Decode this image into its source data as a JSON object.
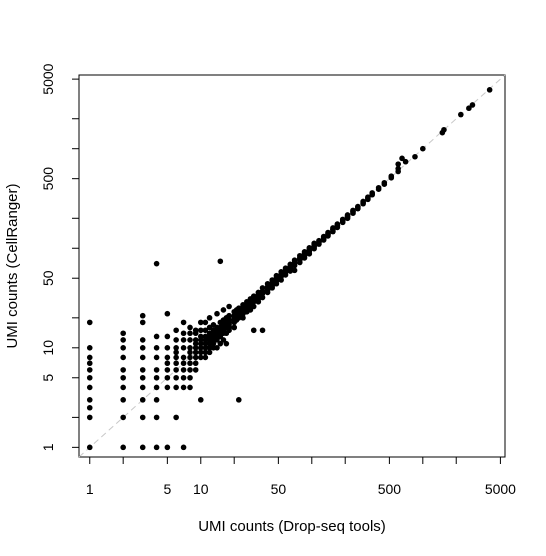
{
  "chart_data": {
    "type": "scatter",
    "title": "",
    "xlabel": "UMI counts (Drop-seq tools)",
    "ylabel": "UMI counts (CellRanger)",
    "xscale": "log",
    "yscale": "log",
    "xlim": [
      0.8,
      5500
    ],
    "ylim": [
      0.8,
      5500
    ],
    "x_ticks": [
      1,
      2,
      5,
      10,
      20,
      50,
      100,
      200,
      500,
      1000,
      2000,
      5000
    ],
    "x_tick_labels": [
      "1",
      "",
      "5",
      "10",
      "",
      "50",
      "",
      "",
      "500",
      "",
      "",
      "5000"
    ],
    "y_ticks": [
      1,
      2,
      5,
      10,
      20,
      50,
      100,
      200,
      500,
      1000,
      2000,
      5000
    ],
    "y_tick_labels": [
      "1",
      "",
      "5",
      "10",
      "",
      "50",
      "",
      "",
      "500",
      "",
      "",
      "5000"
    ],
    "grid": false,
    "legend": "none",
    "reference_line": {
      "slope": 1,
      "intercept": 0,
      "style": "dashed",
      "color": "#c8c8c8"
    },
    "point_color": "#000000",
    "series": [
      {
        "points": [
          [
            1,
            1
          ],
          [
            1,
            2
          ],
          [
            1,
            2.5
          ],
          [
            1,
            3
          ],
          [
            1,
            4
          ],
          [
            1,
            5
          ],
          [
            1,
            6
          ],
          [
            1,
            7
          ],
          [
            1,
            8
          ],
          [
            1,
            10
          ],
          [
            1,
            18
          ],
          [
            2,
            1
          ],
          [
            2,
            2
          ],
          [
            2,
            3
          ],
          [
            2,
            4
          ],
          [
            2,
            5
          ],
          [
            2,
            6
          ],
          [
            2,
            8
          ],
          [
            2,
            10
          ],
          [
            2,
            12
          ],
          [
            2,
            14
          ],
          [
            3,
            1
          ],
          [
            3,
            2
          ],
          [
            3,
            3
          ],
          [
            3,
            4
          ],
          [
            3,
            5
          ],
          [
            3,
            6
          ],
          [
            3,
            8
          ],
          [
            3,
            10
          ],
          [
            3,
            12
          ],
          [
            3,
            18
          ],
          [
            3,
            21
          ],
          [
            4,
            1
          ],
          [
            4,
            2
          ],
          [
            4,
            3
          ],
          [
            4,
            4
          ],
          [
            4,
            5
          ],
          [
            4,
            6
          ],
          [
            4,
            8
          ],
          [
            4,
            10
          ],
          [
            4,
            13
          ],
          [
            4,
            70
          ],
          [
            5,
            1
          ],
          [
            5,
            4
          ],
          [
            5,
            5
          ],
          [
            5,
            6
          ],
          [
            5,
            7
          ],
          [
            5,
            8
          ],
          [
            5,
            10
          ],
          [
            5,
            13
          ],
          [
            5,
            22
          ],
          [
            6,
            2
          ],
          [
            6,
            4
          ],
          [
            6,
            5
          ],
          [
            6,
            6
          ],
          [
            6,
            7
          ],
          [
            6,
            8
          ],
          [
            6,
            9
          ],
          [
            6,
            10
          ],
          [
            6,
            12
          ],
          [
            6,
            15
          ],
          [
            7,
            1
          ],
          [
            7,
            4
          ],
          [
            7,
            5
          ],
          [
            7,
            6
          ],
          [
            7,
            7
          ],
          [
            7,
            8
          ],
          [
            7,
            10
          ],
          [
            7,
            12
          ],
          [
            7,
            14
          ],
          [
            7,
            18
          ],
          [
            8,
            4
          ],
          [
            8,
            5
          ],
          [
            8,
            6
          ],
          [
            8,
            7
          ],
          [
            8,
            8
          ],
          [
            8,
            9
          ],
          [
            8,
            10
          ],
          [
            8,
            12
          ],
          [
            8,
            14
          ],
          [
            8,
            16
          ],
          [
            9,
            6
          ],
          [
            9,
            7
          ],
          [
            9,
            8
          ],
          [
            9,
            9
          ],
          [
            9,
            10
          ],
          [
            9,
            11
          ],
          [
            9,
            12
          ],
          [
            9,
            14
          ],
          [
            9,
            15
          ],
          [
            10,
            3
          ],
          [
            10,
            8
          ],
          [
            10,
            9
          ],
          [
            10,
            10
          ],
          [
            10,
            11
          ],
          [
            10,
            12
          ],
          [
            10,
            13
          ],
          [
            10,
            15
          ],
          [
            10,
            18
          ],
          [
            11,
            8
          ],
          [
            11,
            9
          ],
          [
            11,
            10
          ],
          [
            11,
            11
          ],
          [
            11,
            12
          ],
          [
            11,
            13
          ],
          [
            11,
            15
          ],
          [
            11,
            18
          ],
          [
            12,
            9
          ],
          [
            12,
            10
          ],
          [
            12,
            11
          ],
          [
            12,
            12
          ],
          [
            12,
            13
          ],
          [
            12,
            14
          ],
          [
            12,
            16
          ],
          [
            12,
            20
          ],
          [
            13,
            10
          ],
          [
            13,
            11
          ],
          [
            13,
            12
          ],
          [
            13,
            13
          ],
          [
            13,
            14
          ],
          [
            13,
            15
          ],
          [
            13,
            17
          ],
          [
            14,
            10
          ],
          [
            14,
            12
          ],
          [
            14,
            13
          ],
          [
            14,
            14
          ],
          [
            14,
            15
          ],
          [
            14,
            16
          ],
          [
            14,
            22
          ],
          [
            15,
            11
          ],
          [
            15,
            13
          ],
          [
            15,
            14
          ],
          [
            15,
            15
          ],
          [
            15,
            16
          ],
          [
            15,
            18
          ],
          [
            15,
            74
          ],
          [
            16,
            12
          ],
          [
            16,
            14
          ],
          [
            16,
            15
          ],
          [
            16,
            16
          ],
          [
            16,
            17
          ],
          [
            16,
            19
          ],
          [
            16,
            24
          ],
          [
            17,
            11
          ],
          [
            17,
            14
          ],
          [
            17,
            16
          ],
          [
            17,
            17
          ],
          [
            17,
            18
          ],
          [
            17,
            20
          ],
          [
            18,
            15
          ],
          [
            18,
            16
          ],
          [
            18,
            17
          ],
          [
            18,
            18
          ],
          [
            18,
            19
          ],
          [
            18,
            21
          ],
          [
            18,
            26
          ],
          [
            20,
            16
          ],
          [
            20,
            18
          ],
          [
            20,
            19
          ],
          [
            20,
            20
          ],
          [
            20,
            21
          ],
          [
            20,
            23
          ],
          [
            20,
            16
          ],
          [
            21,
            19
          ],
          [
            21,
            20
          ],
          [
            21,
            21
          ],
          [
            21,
            22
          ],
          [
            21,
            24
          ],
          [
            22,
            3
          ],
          [
            22,
            20
          ],
          [
            22,
            21
          ],
          [
            22,
            22
          ],
          [
            22,
            23
          ],
          [
            22,
            25
          ],
          [
            24,
            20
          ],
          [
            24,
            22
          ],
          [
            24,
            23
          ],
          [
            24,
            24
          ],
          [
            24,
            25
          ],
          [
            24,
            27
          ],
          [
            26,
            23
          ],
          [
            26,
            25
          ],
          [
            26,
            26
          ],
          [
            26,
            27
          ],
          [
            26,
            29
          ],
          [
            28,
            24
          ],
          [
            28,
            27
          ],
          [
            28,
            28
          ],
          [
            28,
            29
          ],
          [
            28,
            31
          ],
          [
            30,
            15
          ],
          [
            30,
            26
          ],
          [
            30,
            29
          ],
          [
            30,
            30
          ],
          [
            30,
            31
          ],
          [
            30,
            33
          ],
          [
            33,
            29
          ],
          [
            33,
            31
          ],
          [
            33,
            33
          ],
          [
            33,
            34
          ],
          [
            33,
            36
          ],
          [
            36,
            15
          ],
          [
            36,
            32
          ],
          [
            36,
            35
          ],
          [
            36,
            36
          ],
          [
            36,
            37
          ],
          [
            36,
            40
          ],
          [
            40,
            36
          ],
          [
            40,
            38
          ],
          [
            40,
            40
          ],
          [
            40,
            41
          ],
          [
            40,
            44
          ],
          [
            44,
            40
          ],
          [
            44,
            42
          ],
          [
            44,
            44
          ],
          [
            44,
            45
          ],
          [
            44,
            48
          ],
          [
            48,
            44
          ],
          [
            48,
            47
          ],
          [
            48,
            48
          ],
          [
            48,
            50
          ],
          [
            48,
            53
          ],
          [
            53,
            48
          ],
          [
            53,
            52
          ],
          [
            53,
            53
          ],
          [
            53,
            55
          ],
          [
            53,
            58
          ],
          [
            58,
            54
          ],
          [
            58,
            57
          ],
          [
            58,
            58
          ],
          [
            58,
            60
          ],
          [
            58,
            63
          ],
          [
            64,
            59
          ],
          [
            64,
            62
          ],
          [
            64,
            64
          ],
          [
            64,
            66
          ],
          [
            64,
            69
          ],
          [
            70,
            60
          ],
          [
            70,
            67
          ],
          [
            70,
            70
          ],
          [
            70,
            72
          ],
          [
            70,
            76
          ],
          [
            78,
            72
          ],
          [
            78,
            76
          ],
          [
            78,
            78
          ],
          [
            78,
            80
          ],
          [
            78,
            84
          ],
          [
            86,
            80
          ],
          [
            86,
            84
          ],
          [
            86,
            86
          ],
          [
            86,
            88
          ],
          [
            86,
            92
          ],
          [
            95,
            88
          ],
          [
            95,
            93
          ],
          [
            95,
            95
          ],
          [
            95,
            97
          ],
          [
            95,
            101
          ],
          [
            105,
            99
          ],
          [
            105,
            103
          ],
          [
            105,
            105
          ],
          [
            105,
            108
          ],
          [
            105,
            112
          ],
          [
            116,
            110
          ],
          [
            116,
            114
          ],
          [
            116,
            116
          ],
          [
            116,
            119
          ],
          [
            128,
            121
          ],
          [
            128,
            126
          ],
          [
            128,
            128
          ],
          [
            128,
            131
          ],
          [
            140,
            133
          ],
          [
            140,
            138
          ],
          [
            140,
            140
          ],
          [
            140,
            144
          ],
          [
            155,
            147
          ],
          [
            155,
            153
          ],
          [
            155,
            155
          ],
          [
            155,
            160
          ],
          [
            170,
            162
          ],
          [
            170,
            168
          ],
          [
            170,
            170
          ],
          [
            170,
            175
          ],
          [
            190,
            182
          ],
          [
            190,
            188
          ],
          [
            190,
            190
          ],
          [
            190,
            195
          ],
          [
            210,
            200
          ],
          [
            210,
            207
          ],
          [
            210,
            210
          ],
          [
            210,
            216
          ],
          [
            235,
            225
          ],
          [
            235,
            232
          ],
          [
            235,
            235
          ],
          [
            235,
            240
          ],
          [
            260,
            250
          ],
          [
            260,
            258
          ],
          [
            260,
            262
          ],
          [
            290,
            280
          ],
          [
            290,
            288
          ],
          [
            290,
            295
          ],
          [
            320,
            310
          ],
          [
            320,
            318
          ],
          [
            320,
            326
          ],
          [
            350,
            345
          ],
          [
            350,
            352
          ],
          [
            350,
            360
          ],
          [
            400,
            392
          ],
          [
            400,
            405
          ],
          [
            450,
            440
          ],
          [
            450,
            455
          ],
          [
            520,
            510
          ],
          [
            520,
            530
          ],
          [
            600,
            590
          ],
          [
            600,
            630
          ],
          [
            600,
            700
          ],
          [
            650,
            800
          ],
          [
            700,
            740
          ],
          [
            850,
            830
          ],
          [
            1000,
            1000
          ],
          [
            1500,
            1450
          ],
          [
            1550,
            1550
          ],
          [
            2200,
            2200
          ],
          [
            2600,
            2550
          ],
          [
            2800,
            2750
          ],
          [
            4000,
            3900
          ]
        ]
      }
    ]
  }
}
